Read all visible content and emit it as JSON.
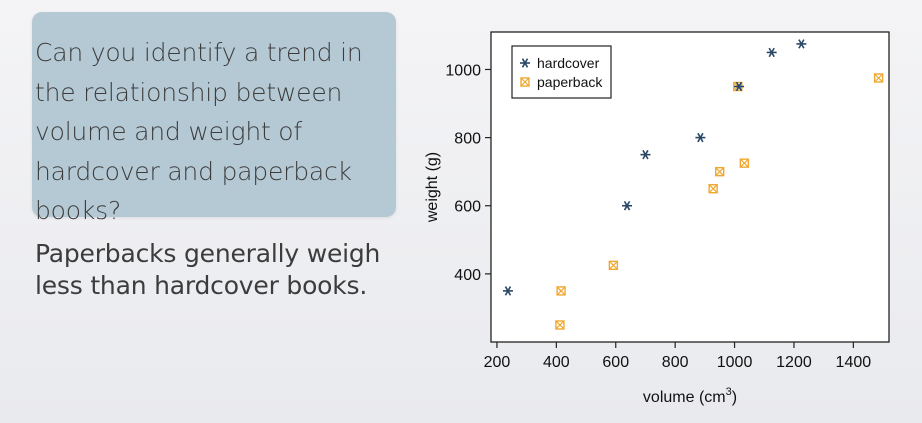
{
  "slide": {
    "question": "Can you identify a trend in the relationship between volume and weight of hardcover and paperback books?",
    "answer": "Paperbacks generally weigh less than hardcover books."
  },
  "chart_data": {
    "type": "scatter",
    "title": "",
    "xlabel": "volume (cm",
    "xlabel_superscript": "3",
    "xlabel_suffix": ")",
    "ylabel": "weight (g)",
    "xlim": [
      180,
      1520
    ],
    "ylim": [
      200,
      1110
    ],
    "xticks": [
      200,
      400,
      600,
      800,
      1000,
      1200,
      1400
    ],
    "yticks": [
      400,
      600,
      800,
      1000
    ],
    "legend_position": "top-left",
    "series": [
      {
        "name": "hardcover",
        "marker": "asterisk",
        "color": "#2b4766",
        "points": [
          {
            "x": 237,
            "y": 350
          },
          {
            "x": 638,
            "y": 600
          },
          {
            "x": 700,
            "y": 750
          },
          {
            "x": 885,
            "y": 800
          },
          {
            "x": 1015,
            "y": 950
          },
          {
            "x": 1125,
            "y": 1050
          },
          {
            "x": 1225,
            "y": 1075
          }
        ]
      },
      {
        "name": "paperback",
        "marker": "boxed-x",
        "color": "#f0a830",
        "points": [
          {
            "x": 412,
            "y": 250
          },
          {
            "x": 416,
            "y": 350
          },
          {
            "x": 592,
            "y": 425
          },
          {
            "x": 928,
            "y": 650
          },
          {
            "x": 950,
            "y": 700
          },
          {
            "x": 1011,
            "y": 950
          },
          {
            "x": 1033,
            "y": 725
          },
          {
            "x": 1485,
            "y": 975
          }
        ]
      }
    ]
  }
}
